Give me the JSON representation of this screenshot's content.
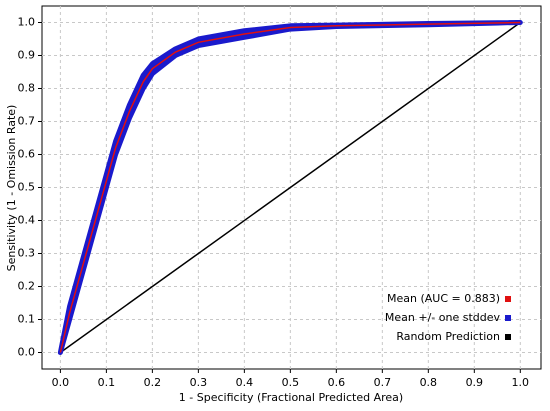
{
  "chart_data": {
    "type": "line",
    "x_label": "1 - Specificity (Fractional Predicted Area)",
    "y_label": "Sensitivity (1 - Omission Rate)",
    "xlim": [
      -0.04,
      1.045
    ],
    "ylim": [
      -0.05,
      1.05
    ],
    "xticks": [
      {
        "value": 0,
        "label": "0.0"
      },
      0.1,
      0.2,
      0.3,
      0.4,
      0.5,
      0.6,
      0.7,
      0.8,
      0.9,
      {
        "value": 1,
        "label": "1.0"
      }
    ],
    "yticks": [
      {
        "value": 0,
        "label": "0.0"
      },
      0.1,
      0.2,
      0.3,
      0.4,
      0.5,
      0.6,
      0.7,
      0.8,
      0.9,
      {
        "value": 1,
        "label": "1.0"
      }
    ],
    "grid": true,
    "legend": "lower-right",
    "x": [
      0,
      0.02,
      0.05,
      0.08,
      0.1,
      0.12,
      0.15,
      0.18,
      0.2,
      0.25,
      0.3,
      0.4,
      0.5,
      0.6,
      0.8,
      1.0
    ],
    "band": {
      "name": "Mean +/- one stddev",
      "color": "#1a1acc",
      "lower": [
        0,
        0.1,
        0.25,
        0.4,
        0.5,
        0.6,
        0.71,
        0.8,
        0.845,
        0.9,
        0.93,
        0.955,
        0.98,
        0.988,
        0.993,
        1.0
      ],
      "upper": [
        0,
        0.14,
        0.29,
        0.44,
        0.54,
        0.64,
        0.75,
        0.84,
        0.875,
        0.92,
        0.95,
        0.975,
        0.99,
        0.992,
        0.997,
        1.0
      ]
    },
    "series": [
      {
        "name": "Mean (AUC = 0.883)",
        "color": "#e01010",
        "values": [
          0,
          0.12,
          0.27,
          0.42,
          0.52,
          0.62,
          0.73,
          0.82,
          0.86,
          0.91,
          0.94,
          0.965,
          0.985,
          0.99,
          0.995,
          1.0
        ]
      }
    ],
    "reference": {
      "name": "Random Prediction",
      "color": "#000000",
      "x": [
        0,
        1
      ],
      "values": [
        0,
        1
      ]
    }
  }
}
